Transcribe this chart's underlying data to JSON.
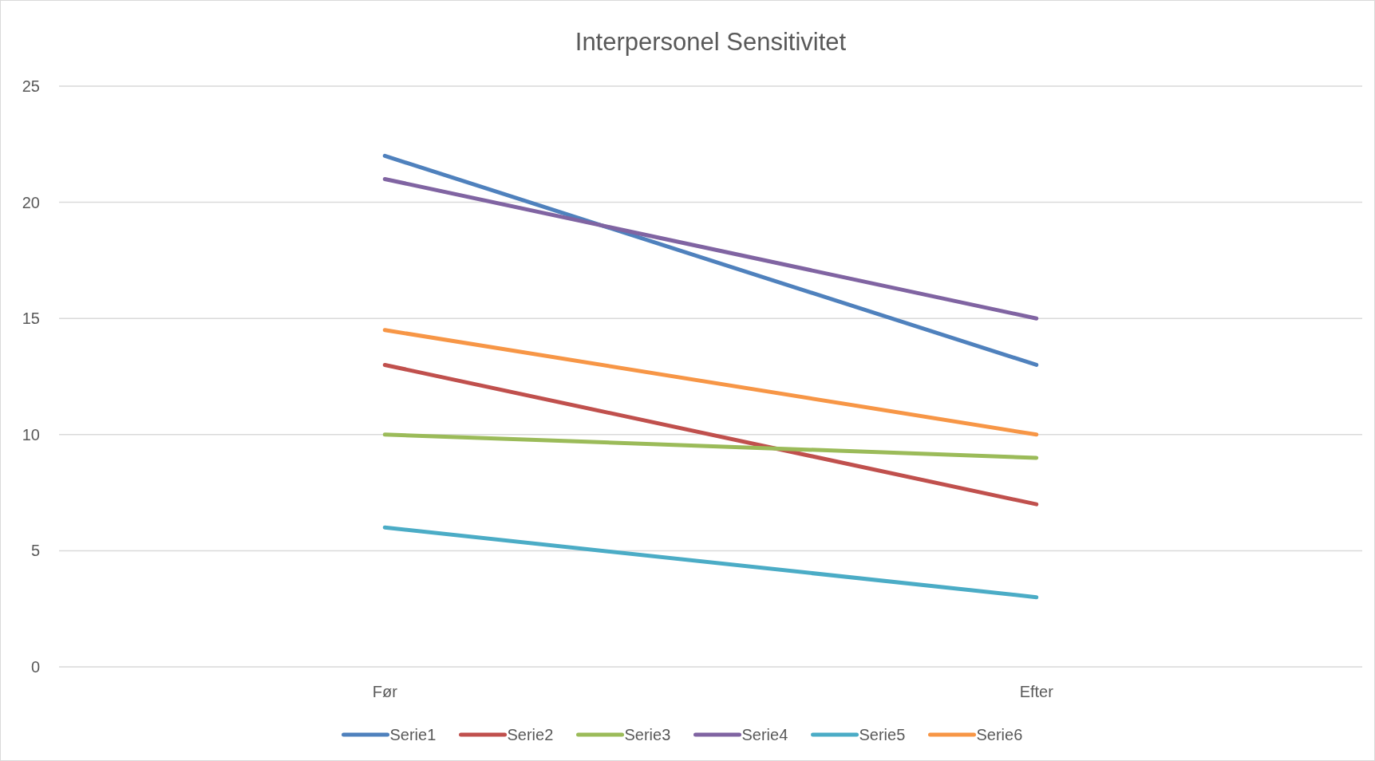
{
  "chart_data": {
    "type": "line",
    "title": "Interpersonel Sensitivitet",
    "categories": [
      "Før",
      "Efter"
    ],
    "series": [
      {
        "name": "Serie1",
        "color": "#4f81bd",
        "values": [
          22,
          13
        ]
      },
      {
        "name": "Serie2",
        "color": "#c0504d",
        "values": [
          13,
          7
        ]
      },
      {
        "name": "Serie3",
        "color": "#9bbb59",
        "values": [
          10,
          9
        ]
      },
      {
        "name": "Serie4",
        "color": "#8064a2",
        "values": [
          21,
          15
        ]
      },
      {
        "name": "Serie5",
        "color": "#4bacc6",
        "values": [
          6,
          3
        ]
      },
      {
        "name": "Serie6",
        "color": "#f79646",
        "values": [
          14.5,
          10
        ]
      }
    ],
    "ylim": [
      0,
      25
    ],
    "yticks": [
      0,
      5,
      10,
      15,
      20,
      25
    ],
    "grid": "y",
    "legend": "bottom",
    "marker": "none",
    "line_style": "solid"
  }
}
